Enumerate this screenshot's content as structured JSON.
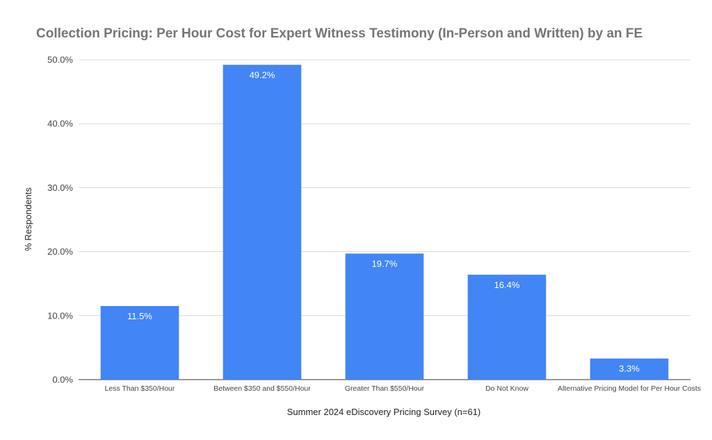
{
  "chart_data": {
    "type": "bar",
    "title": "Collection Pricing: Per Hour Cost for Expert Witness Testimony (In-Person and Written) by an FE",
    "xlabel": "Summer 2024 eDiscovery Pricing Survey (n=61)",
    "ylabel": "% Respondents",
    "categories": [
      "Less Than $350/Hour",
      "Between $350 and $550/Hour",
      "Greater Than $550/Hour",
      "Do Not Know",
      "Alternative Pricing Model for Per Hour Costs"
    ],
    "values": [
      11.5,
      49.2,
      19.7,
      16.4,
      3.3
    ],
    "data_labels": [
      "11.5%",
      "49.2%",
      "19.7%",
      "16.4%",
      "3.3%"
    ],
    "ylim": [
      0,
      50
    ],
    "yticks": [
      0,
      10,
      20,
      30,
      40,
      50
    ],
    "ytick_labels": [
      "0.0%",
      "10.0%",
      "20.0%",
      "30.0%",
      "40.0%",
      "50.0%"
    ],
    "grid": true,
    "legend": "none",
    "bar_color": "#4285f4"
  }
}
